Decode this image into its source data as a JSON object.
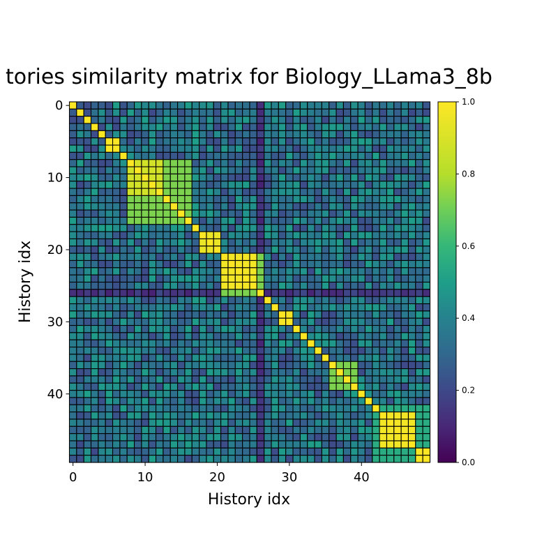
{
  "chart_data": {
    "type": "heatmap",
    "title": "tories similarity matrix for Biology_LLama3_8b",
    "xlabel": "History idx",
    "ylabel": "History idx",
    "n": 50,
    "x_ticks": [
      0,
      10,
      20,
      30,
      40
    ],
    "y_ticks": [
      0,
      10,
      20,
      30,
      40
    ],
    "colorbar": {
      "range": [
        0,
        1
      ],
      "ticks": [
        "0.0",
        "0.2",
        "0.4",
        "0.6",
        "0.8",
        "1.0"
      ]
    },
    "grid": true,
    "colormap": "viridis",
    "blocks": [
      {
        "start": 5,
        "end": 6,
        "value": 1.0
      },
      {
        "start": 8,
        "end": 12,
        "value": 0.88
      },
      {
        "start": 8,
        "end": 16,
        "value": 0.72
      },
      {
        "start": 18,
        "end": 20,
        "value": 0.95
      },
      {
        "start": 21,
        "end": 25,
        "value": 0.97
      },
      {
        "start": 21,
        "end": 26,
        "value": 0.72
      },
      {
        "start": 29,
        "end": 30,
        "value": 0.98
      },
      {
        "start": 36,
        "end": 39,
        "value": 0.72
      },
      {
        "start": 43,
        "end": 47,
        "value": 0.97
      },
      {
        "start": 42,
        "end": 49,
        "value": 0.55
      },
      {
        "start": 48,
        "end": 49,
        "value": 1.0
      }
    ],
    "background": {
      "low": 0.2,
      "high": 0.5
    },
    "dark_rows": [
      26
    ],
    "dark_cols": [
      26
    ],
    "diagonal": 1.0
  }
}
